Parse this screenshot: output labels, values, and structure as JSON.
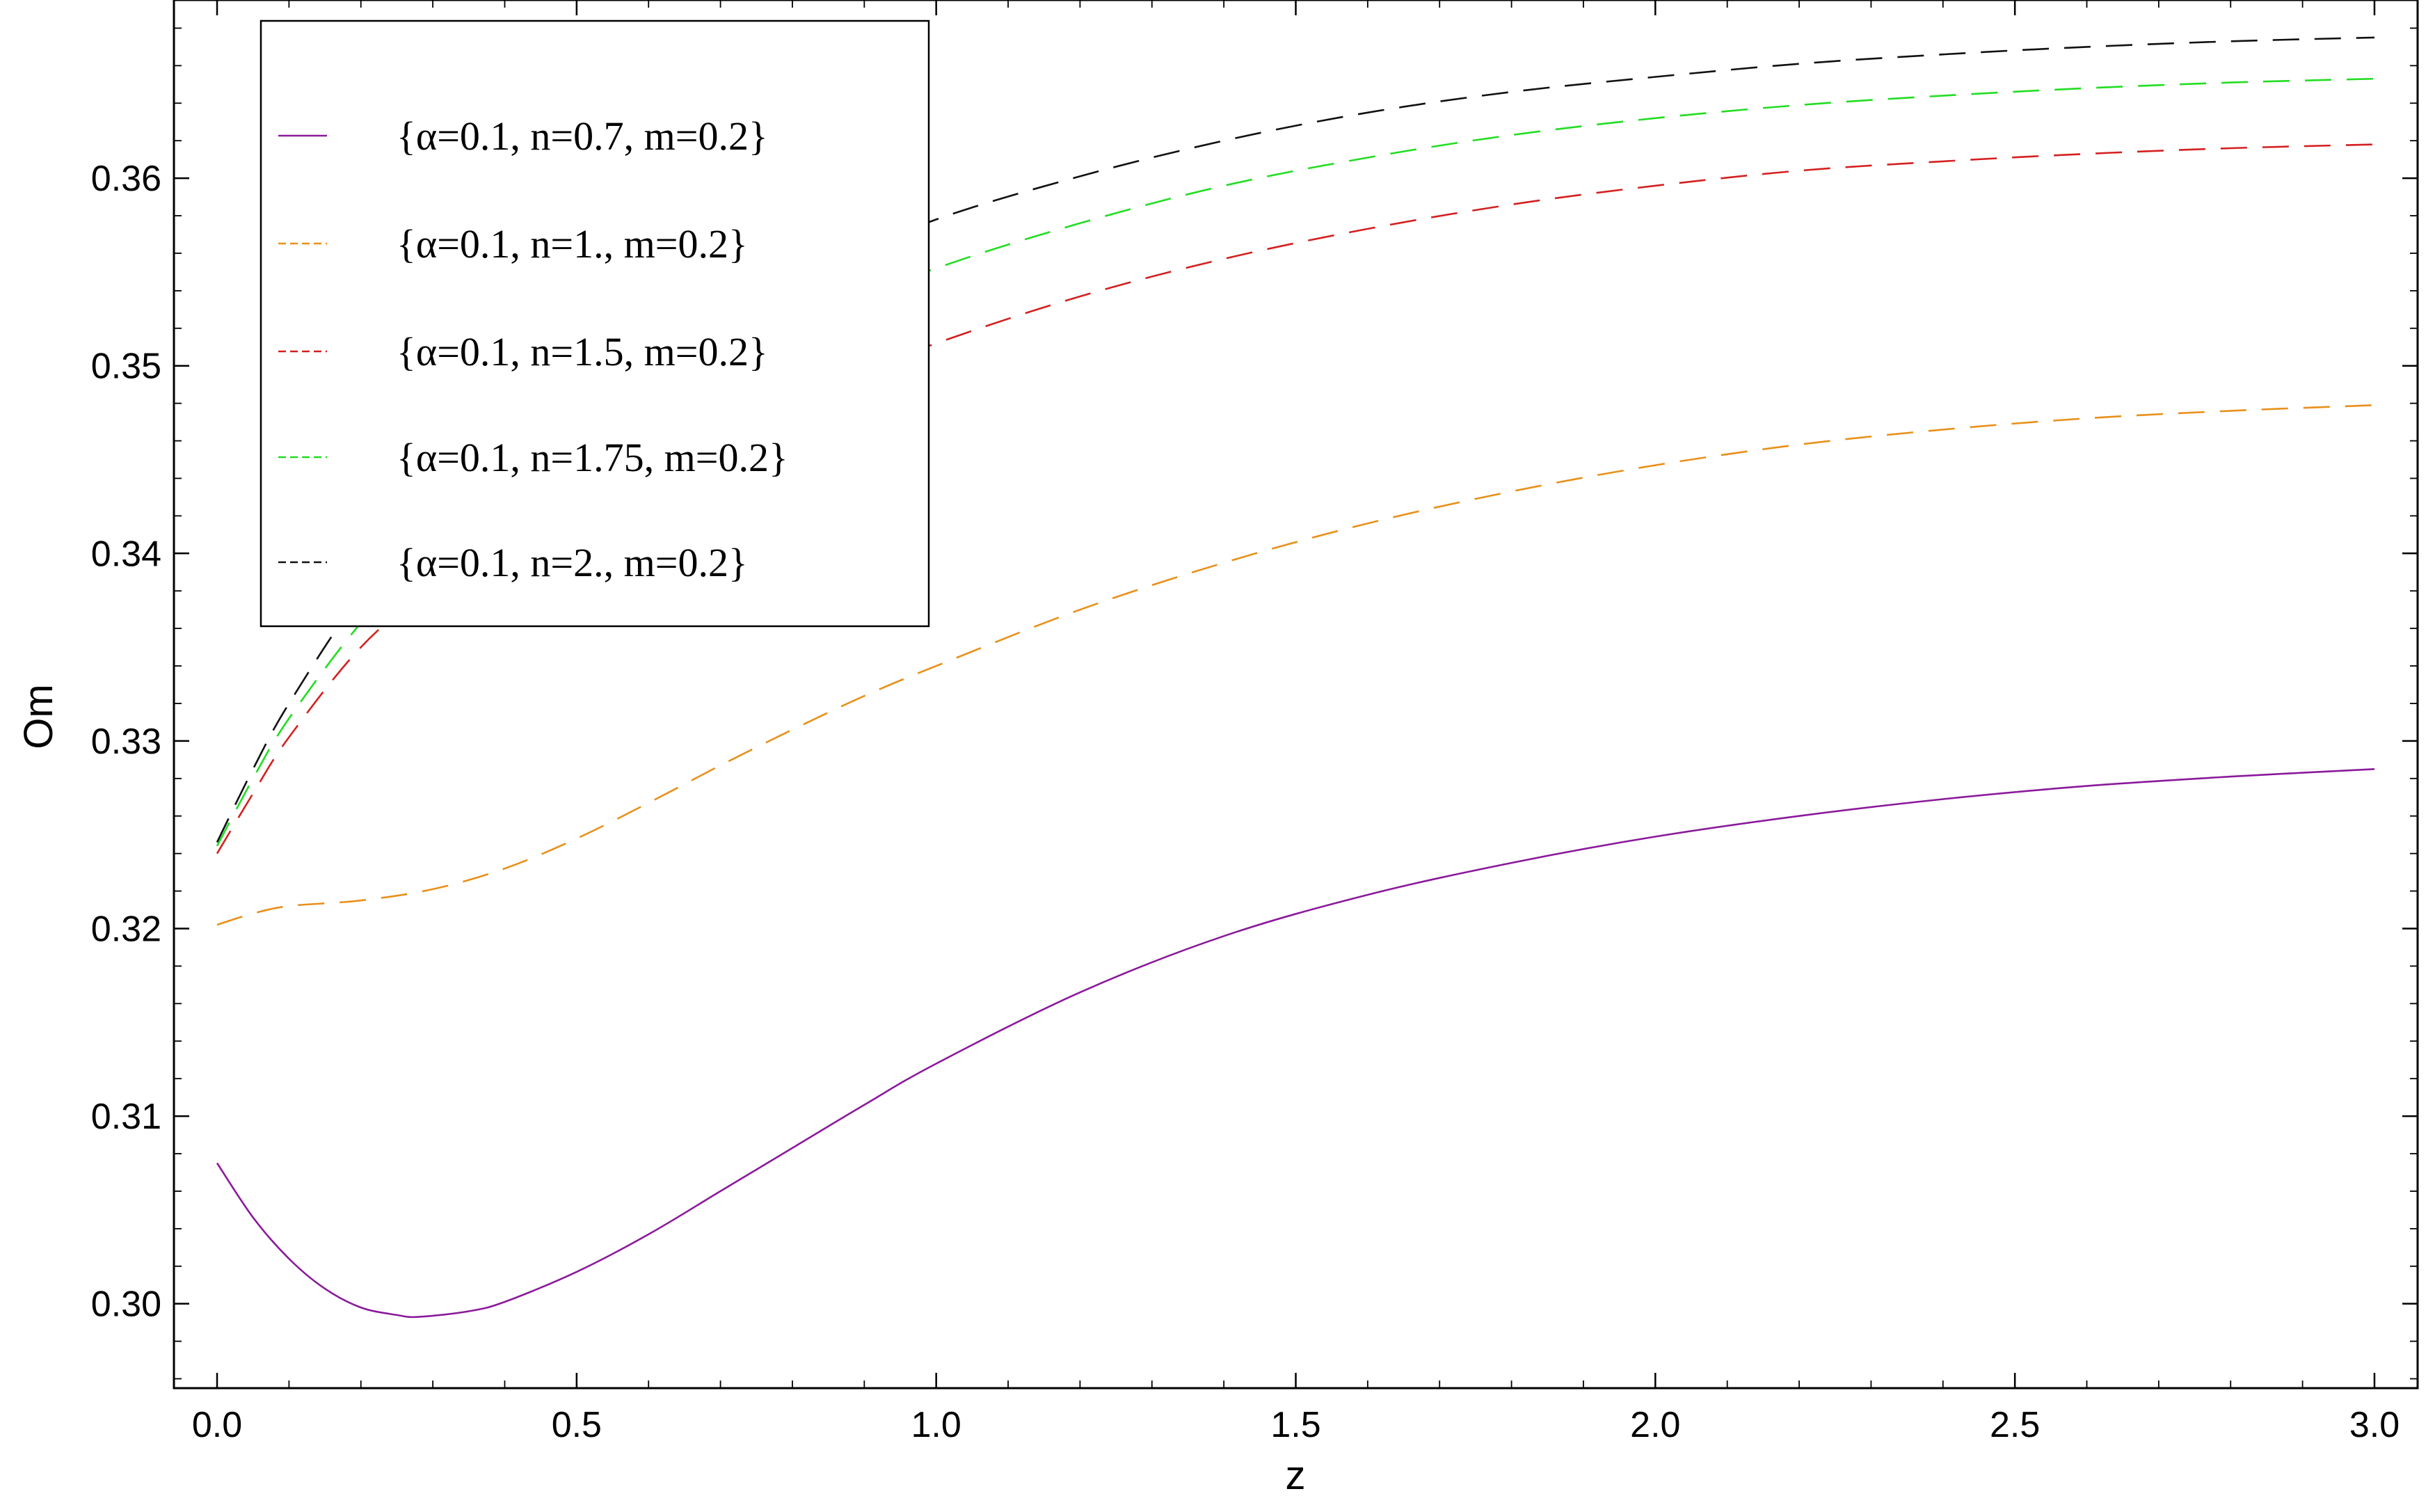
{
  "chart_data": {
    "type": "line",
    "xlabel": "z",
    "ylabel": "Om",
    "xlim": [
      -0.06,
      3.06
    ],
    "ylim": [
      0.2955,
      0.3695
    ],
    "xticks": [
      0.0,
      0.5,
      1.0,
      1.5,
      2.0,
      2.5,
      3.0
    ],
    "xtick_labels": [
      "0.0",
      "0.5",
      "1.0",
      "1.5",
      "2.0",
      "2.5",
      "3.0"
    ],
    "yticks": [
      0.3,
      0.31,
      0.32,
      0.33,
      0.34,
      0.35,
      0.36
    ],
    "ytick_labels": [
      "0.30",
      "0.31",
      "0.32",
      "0.33",
      "0.34",
      "0.35",
      "0.36"
    ],
    "grid": false,
    "legend_position": "top-left",
    "series": [
      {
        "name": "{α=0.1, n=0.7, m=0.2}",
        "color": "#8b1a9b",
        "style": "solid",
        "x": [
          0,
          0.05,
          0.1,
          0.15,
          0.2,
          0.25,
          0.28,
          0.35,
          0.4,
          0.5,
          0.6,
          0.7,
          0.8,
          0.9,
          1.0,
          1.2,
          1.4,
          1.6,
          1.8,
          2.0,
          2.2,
          2.4,
          2.6,
          2.8,
          3.0
        ],
        "y": [
          0.3075,
          0.3046,
          0.3024,
          0.3008,
          0.2998,
          0.2994,
          0.2993,
          0.2996,
          0.3001,
          0.3017,
          0.3037,
          0.306,
          0.3083,
          0.3106,
          0.3128,
          0.3166,
          0.3196,
          0.3218,
          0.3235,
          0.3249,
          0.326,
          0.3269,
          0.3276,
          0.3281,
          0.3285
        ]
      },
      {
        "name": "{α=0.1, n=1., m=0.2}",
        "color": "#e8901a",
        "style": "dashed",
        "x": [
          0,
          0.05,
          0.1,
          0.2,
          0.3,
          0.4,
          0.5,
          0.6,
          0.7,
          0.8,
          0.9,
          1.0,
          1.2,
          1.4,
          1.6,
          1.8,
          2.0,
          2.2,
          2.4,
          2.6,
          2.8,
          3.0
        ],
        "y": [
          0.3202,
          0.3208,
          0.3212,
          0.3215,
          0.3221,
          0.3232,
          0.3248,
          0.3267,
          0.3287,
          0.3306,
          0.3324,
          0.334,
          0.337,
          0.3395,
          0.3416,
          0.3433,
          0.3447,
          0.3458,
          0.3466,
          0.3472,
          0.3476,
          0.3479
        ]
      },
      {
        "name": "{α=0.1, n=1.5, m=0.2}",
        "color": "#d42020",
        "style": "dashed",
        "x": [
          0,
          0.05,
          0.1,
          0.2,
          0.3,
          0.4,
          0.5,
          0.6,
          0.8,
          1.0,
          1.2,
          1.4,
          1.6,
          1.8,
          2.0,
          2.2,
          2.4,
          2.6,
          2.8,
          3.0
        ],
        "y": [
          0.324,
          0.3272,
          0.3302,
          0.335,
          0.3383,
          0.341,
          0.3432,
          0.345,
          0.3483,
          0.3512,
          0.3537,
          0.3557,
          0.3573,
          0.3586,
          0.3596,
          0.3604,
          0.3609,
          0.3613,
          0.3616,
          0.3618
        ]
      },
      {
        "name": "{α=0.1, n=1.75, m=0.2}",
        "color": "#22dd22",
        "style": "dashed",
        "x": [
          0,
          0.05,
          0.1,
          0.2,
          0.3,
          0.4,
          0.5,
          0.6,
          0.8,
          1.0,
          1.2,
          1.4,
          1.6,
          1.8,
          2.0,
          2.2,
          2.4,
          2.6,
          2.8,
          3.0
        ],
        "y": [
          0.3244,
          0.328,
          0.3312,
          0.3363,
          0.3403,
          0.3436,
          0.3463,
          0.3486,
          0.3522,
          0.3552,
          0.3576,
          0.3596,
          0.3611,
          0.3623,
          0.3632,
          0.3639,
          0.3644,
          0.3648,
          0.3651,
          0.3653
        ]
      },
      {
        "name": "{α=0.1, n=2., m=0.2}",
        "color": "#111111",
        "style": "dashed",
        "x": [
          0,
          0.05,
          0.1,
          0.2,
          0.3,
          0.4,
          0.5,
          0.6,
          0.8,
          1.0,
          1.2,
          1.4,
          1.6,
          1.8,
          2.0,
          2.2,
          2.4,
          2.6,
          2.8,
          3.0
        ],
        "y": [
          0.3246,
          0.3285,
          0.332,
          0.3378,
          0.3422,
          0.3458,
          0.3487,
          0.351,
          0.3547,
          0.3578,
          0.3601,
          0.362,
          0.3635,
          0.3646,
          0.3654,
          0.3661,
          0.3666,
          0.367,
          0.3673,
          0.3675
        ]
      }
    ]
  }
}
